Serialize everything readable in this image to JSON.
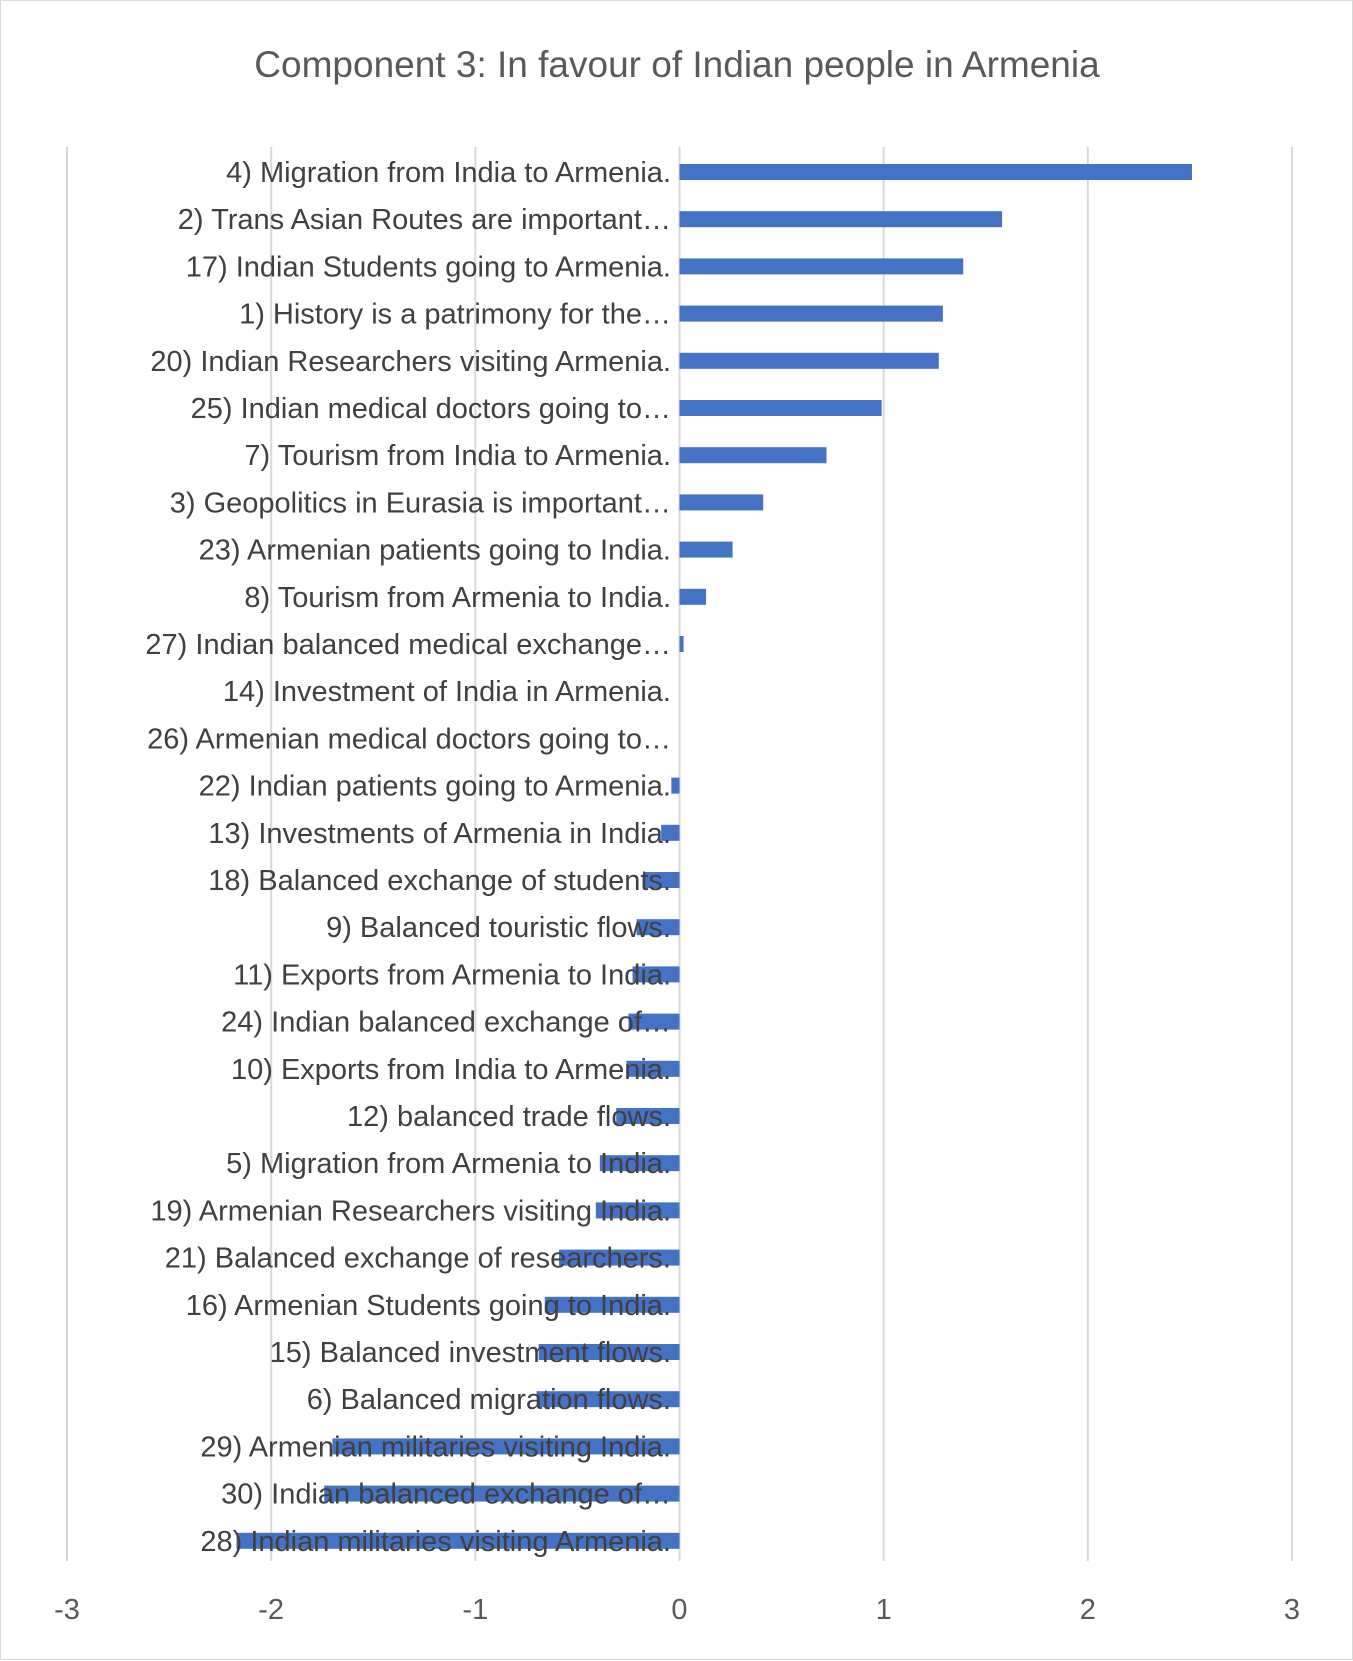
{
  "chart_data": {
    "type": "bar",
    "orientation": "horizontal",
    "title": "Component 3: In favour of  Indian people in Armenia",
    "xlabel": "",
    "ylabel": "",
    "xlim": [
      -3,
      3
    ],
    "xticks": [
      "-3",
      "-2",
      "-1",
      "0",
      "1",
      "2",
      "3"
    ],
    "grid": true,
    "legend": "none",
    "bar_color": "#4472c4",
    "categories": [
      "4)  Migration from India to Armenia.",
      "2) Trans Asian Routes are important…",
      "17)  Indian Students going to Armenia.",
      "1) History is a patrimony for the…",
      "20)  Indian Researchers visiting Armenia.",
      "25)  Indian medical doctors going to…",
      "7)  Tourism from India to Armenia.",
      "3) Geopolitics in Eurasia is important…",
      "23)  Armenian patients going to India.",
      "8)  Tourism from Armenia to India.",
      "27)  Indian balanced medical exchange…",
      "14)  Investment of India in Armenia.",
      "26)  Armenian medical doctors going to…",
      "22)  Indian patients going to Armenia.",
      "13)  Investments of Armenia in India.",
      "18)  Balanced exchange of students.",
      "9)  Balanced touristic flows.",
      "11)  Exports from Armenia to India.",
      "24)  Indian balanced exchange of…",
      "10)  Exports from India to Armenia.",
      "12)  balanced trade flows.",
      "5)  Migration from Armenia to India.",
      "19)  Armenian Researchers visiting India.",
      "21)  Balanced exchange of researchers.",
      "16)  Armenian Students going to India.",
      "15)  Balanced investment flows.",
      "6)  Balanced migration flows.",
      "29)  Armenian militaries visiting India.",
      "30)  Indian balanced exchange of…",
      "28)  Indian militaries visiting Armenia."
    ],
    "values": [
      2.51,
      1.58,
      1.39,
      1.29,
      1.27,
      0.99,
      0.72,
      0.41,
      0.26,
      0.13,
      0.02,
      0.0,
      0.0,
      -0.04,
      -0.09,
      -0.17,
      -0.21,
      -0.23,
      -0.25,
      -0.26,
      -0.31,
      -0.39,
      -0.41,
      -0.59,
      -0.66,
      -0.69,
      -0.7,
      -1.7,
      -1.74,
      -2.17
    ]
  }
}
